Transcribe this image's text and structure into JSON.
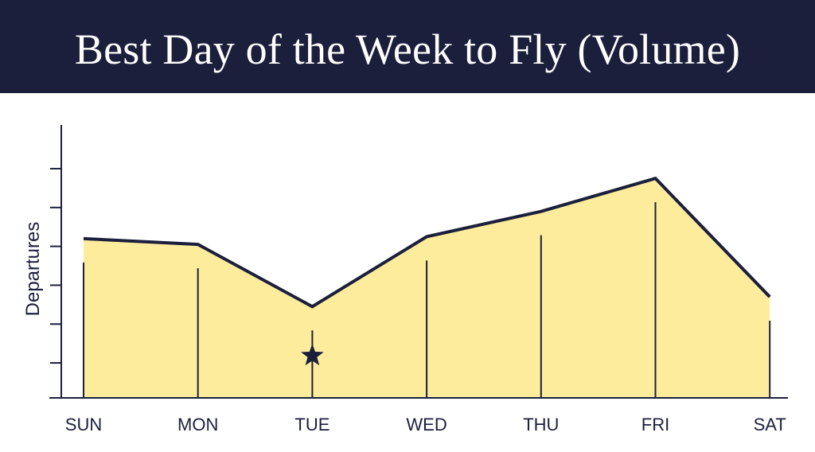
{
  "banner": {
    "title": "Best Day of the Week to Fly (Volume)"
  },
  "colors": {
    "banner": "#1b1f3b",
    "line": "#1b1f3b",
    "fill": "#fcec9c",
    "text": "#1b1f3b"
  },
  "chart_data": {
    "type": "area",
    "title": "Best Day of the Week to Fly (Volume)",
    "xlabel": "",
    "ylabel": "Departures",
    "categories": [
      "SUN",
      "MON",
      "TUE",
      "WED",
      "THU",
      "FRI",
      "SAT"
    ],
    "values": [
      3.2,
      3.05,
      1.45,
      3.25,
      3.9,
      4.75,
      1.7
    ],
    "ylim": [
      -0.9,
      5.9
    ],
    "y_ticks": [
      0,
      1,
      2,
      3,
      4,
      5
    ],
    "y_tick_labels_shown": false,
    "grid": false,
    "legend": "none",
    "annotations": [
      {
        "category": "TUE",
        "marker": "star-icon"
      }
    ]
  }
}
